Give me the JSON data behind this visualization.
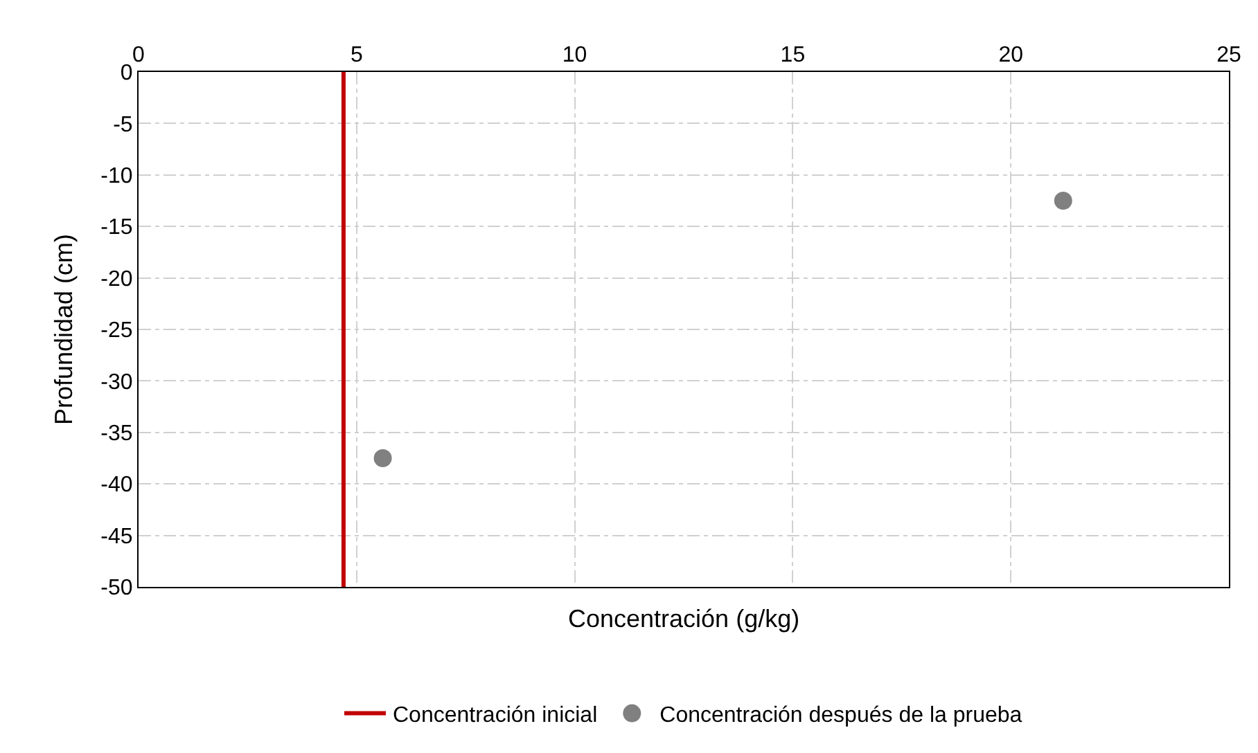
{
  "chart_data": {
    "type": "scatter",
    "xlabel": "Concentración (g/kg)",
    "ylabel": "Profundidad (cm)",
    "xlim": [
      0,
      25
    ],
    "xticks": [
      0,
      5,
      10,
      15,
      20,
      25
    ],
    "ylim": [
      -50,
      0
    ],
    "yticks": [
      0,
      -5,
      -10,
      -15,
      -20,
      -25,
      -30,
      -35,
      -40,
      -45,
      -50
    ],
    "grid": true,
    "legend": "bottom",
    "series": [
      {
        "name": "Concentración inicial",
        "type": "line",
        "color": "#c00000",
        "x": [
          4.7,
          4.7
        ],
        "values": [
          0,
          -50
        ],
        "marker": "none",
        "line_style": "solid"
      },
      {
        "name": "Concentración después de la prueba",
        "color": "#808080",
        "x": [
          5.6,
          21.2
        ],
        "values": [
          -37.5,
          -12.5
        ],
        "marker": "circle"
      }
    ]
  }
}
